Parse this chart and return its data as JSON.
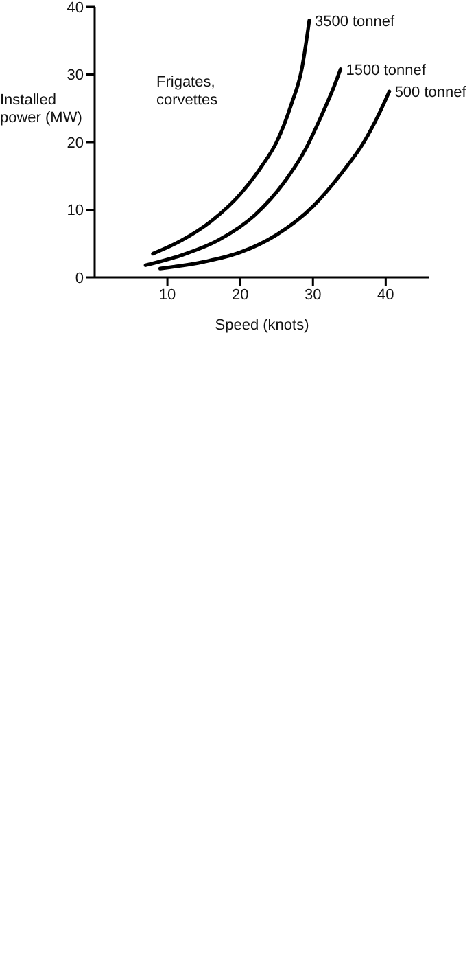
{
  "chart_data": {
    "type": "line",
    "xlabel": "Speed (knots)",
    "ylabel": "Installed power (MW)",
    "annotations": [
      "Frigates, corvettes"
    ],
    "xlim": [
      0,
      46
    ],
    "xticks": [
      10,
      20,
      30,
      40
    ],
    "ylim": [
      0,
      40
    ],
    "yticks": [
      0,
      10,
      20,
      30,
      40
    ],
    "grid": false,
    "legend": false,
    "marker": "none",
    "line_style": "solid",
    "series": [
      {
        "name": "3500 tonnef",
        "color": "#000000",
        "x": [
          8,
          12,
          16,
          20,
          23,
          25,
          27,
          28.5,
          29.5
        ],
        "values": [
          3.5,
          5.5,
          8.3,
          12.3,
          16.5,
          20,
          25.5,
          31,
          38
        ]
      },
      {
        "name": "1500 tonnef",
        "color": "#000000",
        "x": [
          7,
          12,
          17,
          22,
          26,
          29,
          31,
          33,
          33.8
        ],
        "values": [
          1.8,
          3.3,
          5.5,
          9.2,
          14,
          19,
          23.5,
          28.5,
          30.8
        ]
      },
      {
        "name": "500 tonnef",
        "color": "#000000",
        "x": [
          9,
          15,
          20,
          25,
          30,
          34,
          37,
          39,
          40.5
        ],
        "values": [
          1.3,
          2.3,
          3.7,
          6.3,
          10.5,
          15.5,
          20,
          24,
          27.5
        ]
      }
    ]
  }
}
